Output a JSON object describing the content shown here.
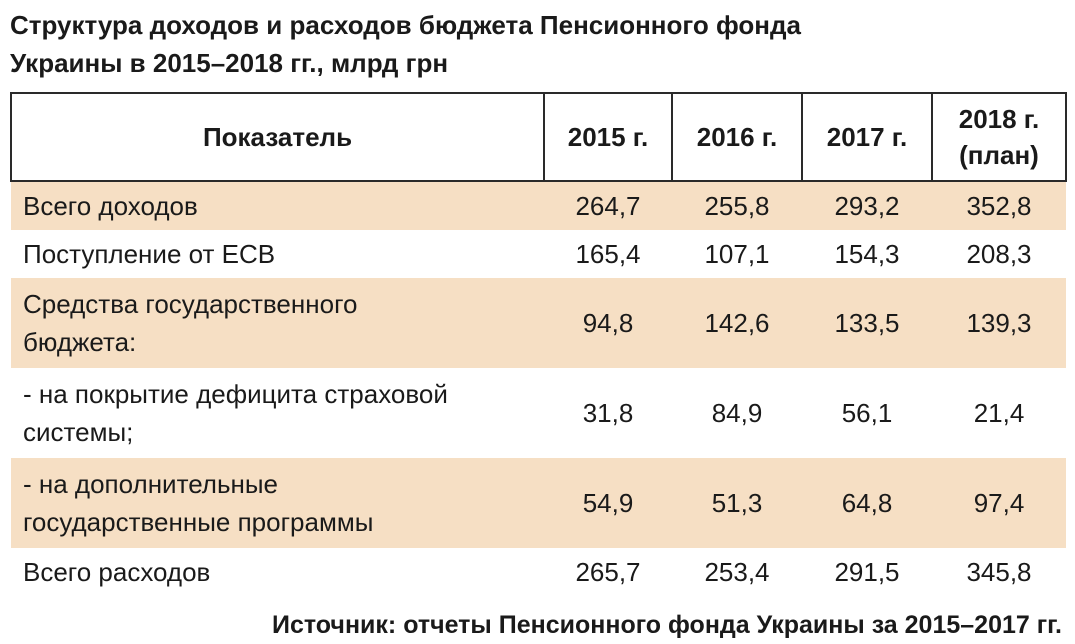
{
  "title": {
    "line1": "Структура доходов и расходов бюджета Пенсионного фонда",
    "line2": "Украины в 2015–2018 гг., млрд грн"
  },
  "table": {
    "headers": {
      "indicator": "Показатель",
      "y2015": "2015 г.",
      "y2016": "2016 г.",
      "y2017": "2017 г.",
      "y2018_line1": "2018 г.",
      "y2018_line2": "(план)"
    },
    "rows": [
      {
        "label": "Всего доходов",
        "v2015": "264,7",
        "v2016": "255,8",
        "v2017": "293,2",
        "v2018": "352,8"
      },
      {
        "label": "Поступление от ЕСВ",
        "v2015": "165,4",
        "v2016": "107,1",
        "v2017": "154,3",
        "v2018": "208,3"
      },
      {
        "label_line1": "Средства государственного",
        "label_line2": "бюджета:",
        "v2015": "94,8",
        "v2016": "142,6",
        "v2017": "133,5",
        "v2018": "139,3"
      },
      {
        "label_line1": "- на покрытие дефицита страховой",
        "label_line2": "системы;",
        "v2015": "31,8",
        "v2016": "84,9",
        "v2017": "56,1",
        "v2018": "21,4"
      },
      {
        "label_line1": "- на дополнительные",
        "label_line2": "государственные программы",
        "v2015": "54,9",
        "v2016": "51,3",
        "v2017": "64,8",
        "v2018": "97,4"
      },
      {
        "label": "Всего расходов",
        "v2015": "265,7",
        "v2016": "253,4",
        "v2017": "291,5",
        "v2018": "345,8"
      }
    ],
    "colors": {
      "shaded_row": "#f6dfc4",
      "border": "#2a2a2a"
    }
  },
  "source": "Источник: отчеты Пенсионного фонда Украины за 2015–2017 гг."
}
